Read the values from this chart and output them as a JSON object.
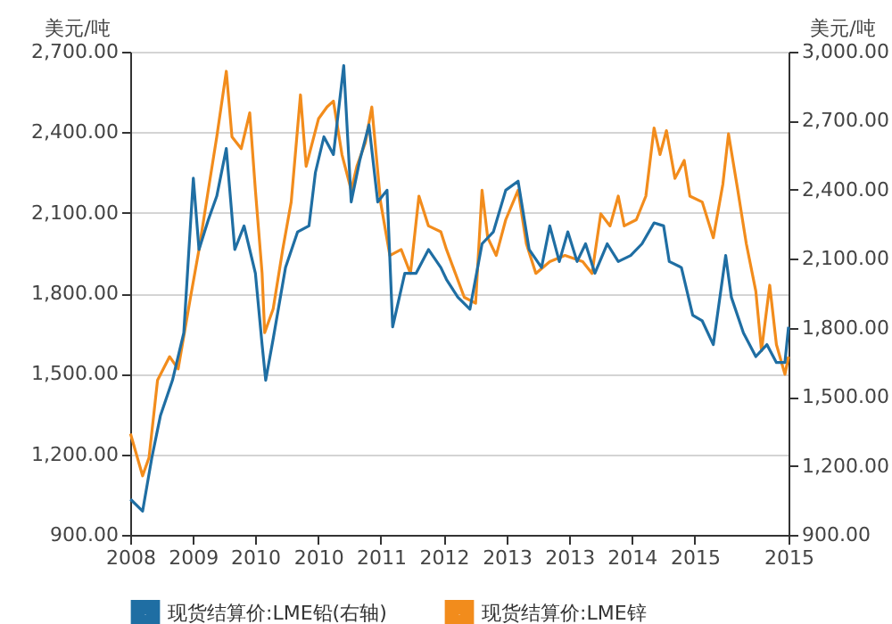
{
  "chart_data": {
    "type": "line",
    "ylabel": "美元/吨",
    "y2label": "美元/吨",
    "xlim": [
      "2008-12-31",
      "2015-12-31"
    ],
    "xticks": [
      {
        "value": "2008-12-31",
        "label": "2008"
      },
      {
        "value": "2009-08-31",
        "label": "2009"
      },
      {
        "value": "2010-04-30",
        "label": "2010"
      },
      {
        "value": "2010-12-31",
        "label": "2010"
      },
      {
        "value": "2011-08-31",
        "label": "2011"
      },
      {
        "value": "2012-05-01",
        "label": "2012"
      },
      {
        "value": "2013-01-01",
        "label": "2013"
      },
      {
        "value": "2013-09-01",
        "label": "2013"
      },
      {
        "value": "2014-05-01",
        "label": "2014"
      },
      {
        "value": "2015-01-01",
        "label": "2015"
      },
      {
        "value": "2015-12-31",
        "label": "2015"
      }
    ],
    "ylim": [
      900,
      2700
    ],
    "yticks": [
      {
        "value": 900,
        "label": "900.00"
      },
      {
        "value": 1200,
        "label": "1,200.00"
      },
      {
        "value": 1500,
        "label": "1,500.00"
      },
      {
        "value": 1800,
        "label": "1,800.00"
      },
      {
        "value": 2100,
        "label": "2,100.00"
      },
      {
        "value": 2400,
        "label": "2,400.00"
      },
      {
        "value": 2700,
        "label": "2,700.00"
      }
    ],
    "y2lim": [
      900,
      3000
    ],
    "y2ticks": [
      {
        "value": 900,
        "label": "900.00"
      },
      {
        "value": 1200,
        "label": "1,200.00"
      },
      {
        "value": 1500,
        "label": "1,500.00"
      },
      {
        "value": 1800,
        "label": "1,800.00"
      },
      {
        "value": 2100,
        "label": "2,100.00"
      },
      {
        "value": 2400,
        "label": "2,400.00"
      },
      {
        "value": 2700,
        "label": "2,700.00"
      },
      {
        "value": 3000,
        "label": "3,000.00"
      }
    ],
    "grid": "y",
    "legend": "bottom",
    "line_style": "solid",
    "series": [
      {
        "name": "现货结算价:LME铅(右轴)",
        "color": "#1f6ea3",
        "axis": "y2",
        "x": [
          "2009-01-01",
          "2009-02-17",
          "2009-03-25",
          "2009-04-27",
          "2009-06-13",
          "2009-07-27",
          "2009-09-02",
          "2009-09-24",
          "2009-10-30",
          "2009-12-02",
          "2010-01-08",
          "2010-02-10",
          "2010-03-18",
          "2010-05-01",
          "2010-05-27",
          "2010-06-10",
          "2010-07-09",
          "2010-08-26",
          "2010-10-12",
          "2010-11-25",
          "2010-12-20",
          "2011-01-22",
          "2011-02-28",
          "2011-04-09",
          "2011-05-08",
          "2011-06-10",
          "2011-07-16",
          "2011-08-19",
          "2011-09-24",
          "2011-10-16",
          "2011-12-02",
          "2012-01-15",
          "2012-03-03",
          "2012-04-20",
          "2012-05-12",
          "2012-06-25",
          "2012-08-11",
          "2012-09-27",
          "2012-11-10",
          "2012-12-28",
          "2013-02-14",
          "2013-03-29",
          "2013-05-16",
          "2013-06-17",
          "2013-07-24",
          "2013-08-26",
          "2013-10-01",
          "2013-11-03",
          "2013-12-09",
          "2014-01-26",
          "2014-03-10",
          "2014-04-27",
          "2014-06-10",
          "2014-07-27",
          "2014-09-02",
          "2014-09-24",
          "2014-11-10",
          "2014-12-24",
          "2015-01-30",
          "2015-03-14",
          "2015-05-01",
          "2015-05-23",
          "2015-07-09",
          "2015-08-26",
          "2015-10-08",
          "2015-11-14",
          "2015-12-17",
          "2015-12-31"
        ],
        "values": [
          1055,
          1003,
          1236,
          1417,
          1572,
          1778,
          2450,
          2140,
          2269,
          2372,
          2579,
          2140,
          2243,
          2037,
          1727,
          1572,
          1752,
          2062,
          2217,
          2243,
          2475,
          2630,
          2553,
          2940,
          2347,
          2527,
          2682,
          2347,
          2398,
          1804,
          2037,
          2037,
          2140,
          2062,
          2010,
          1933,
          1881,
          2165,
          2217,
          2398,
          2437,
          2140,
          2062,
          2243,
          2088,
          2217,
          2088,
          2165,
          2037,
          2165,
          2088,
          2114,
          2165,
          2256,
          2243,
          2088,
          2062,
          1855,
          1830,
          1727,
          2114,
          1933,
          1778,
          1675,
          1727,
          1649,
          1649,
          1804
        ]
      },
      {
        "name": "现货结算价:LME锌",
        "color": "#f28c1c",
        "x": [
          "2009-01-01",
          "2009-02-17",
          "2009-03-14",
          "2009-04-16",
          "2009-06-02",
          "2009-07-05",
          "2009-08-22",
          "2009-09-24",
          "2009-10-30",
          "2009-12-02",
          "2010-01-08",
          "2010-01-30",
          "2010-03-07",
          "2010-04-09",
          "2010-05-01",
          "2010-05-27",
          "2010-06-06",
          "2010-07-09",
          "2010-08-15",
          "2010-09-17",
          "2010-10-23",
          "2010-11-14",
          "2011-01-01",
          "2011-02-03",
          "2011-02-28",
          "2011-04-02",
          "2011-05-08",
          "2011-05-30",
          "2011-07-02",
          "2011-07-27",
          "2011-08-30",
          "2011-10-05",
          "2011-11-18",
          "2011-12-24",
          "2012-01-26",
          "2012-03-03",
          "2012-04-20",
          "2012-05-12",
          "2012-07-20",
          "2012-09-02",
          "2012-09-27",
          "2012-10-19",
          "2012-11-21",
          "2012-12-28",
          "2013-02-14",
          "2013-03-18",
          "2013-04-24",
          "2013-06-17",
          "2013-08-15",
          "2013-10-23",
          "2013-11-28",
          "2014-01-01",
          "2014-02-06",
          "2014-03-10",
          "2014-04-02",
          "2014-05-19",
          "2014-06-25",
          "2014-07-27",
          "2014-08-19",
          "2014-09-13",
          "2014-10-16",
          "2014-11-21",
          "2014-12-13",
          "2015-01-30",
          "2015-03-14",
          "2015-04-20",
          "2015-05-12",
          "2015-06-17",
          "2015-07-20",
          "2015-08-26",
          "2015-09-17",
          "2015-10-19",
          "2015-11-14",
          "2015-12-17",
          "2015-12-31"
        ],
        "values": [
          1277,
          1120,
          1188,
          1476,
          1564,
          1518,
          1785,
          1963,
          2184,
          2383,
          2627,
          2383,
          2339,
          2472,
          2184,
          1874,
          1653,
          1742,
          1963,
          2140,
          2539,
          2273,
          2450,
          2494,
          2516,
          2317,
          2184,
          2273,
          2361,
          2494,
          2140,
          1941,
          1963,
          1874,
          2162,
          2051,
          2029,
          1963,
          1785,
          1763,
          2184,
          2007,
          1941,
          2074,
          2184,
          1985,
          1874,
          1918,
          1941,
          1918,
          1874,
          2096,
          2051,
          2162,
          2051,
          2074,
          2162,
          2416,
          2317,
          2406,
          2228,
          2295,
          2162,
          2140,
          2007,
          2206,
          2394,
          2184,
          1985,
          1808,
          1586,
          1830,
          1609,
          1498,
          1564
        ]
      }
    ]
  }
}
